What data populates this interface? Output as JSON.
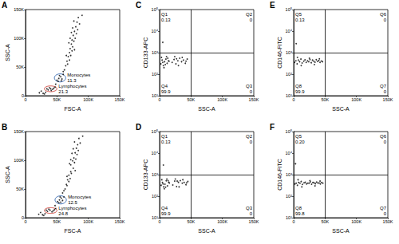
{
  "chart_data": [
    {
      "type": "scatter",
      "title": "A",
      "x_label": "FSC-A",
      "y_label": "SSC-A",
      "color": "#000000",
      "grid": false,
      "xlim": [
        0,
        150000
      ],
      "xticks": [
        0,
        {
          "value": 50000,
          "label": "50K"
        },
        {
          "value": 100000,
          "label": "100K"
        },
        {
          "value": 150000,
          "label": "150K"
        }
      ],
      "ylim": [
        0,
        150000
      ],
      "yticks": [
        0,
        {
          "value": 50000,
          "label": "50K"
        },
        {
          "value": 100000,
          "label": "100K"
        },
        {
          "value": 150000,
          "label": "150K"
        }
      ],
      "x": [
        62000,
        64000,
        66000,
        68000,
        70000,
        71000,
        73000,
        74000,
        76000,
        78000,
        80000,
        82000,
        84000,
        67000,
        72000,
        75000,
        69000,
        77000,
        79000,
        81000,
        73000,
        75000,
        86000,
        70000,
        65000,
        78000,
        83000,
        77000,
        71000,
        74000,
        50000,
        53000,
        56000,
        58000,
        54000,
        60000,
        52000,
        57000,
        36000,
        40000,
        43000,
        38000,
        45000,
        41000,
        34000,
        47000,
        28000,
        32000,
        25000,
        30000,
        22000,
        48000,
        60000,
        90000
      ],
      "values": [
        45000,
        52000,
        60000,
        68000,
        75000,
        82000,
        90000,
        97000,
        105000,
        112000,
        120000,
        128000,
        136000,
        55000,
        70000,
        85000,
        92000,
        95000,
        100000,
        108000,
        110000,
        118000,
        125000,
        62000,
        70000,
        80000,
        115000,
        130000,
        100000,
        78000,
        27000,
        30000,
        33000,
        29000,
        35000,
        37000,
        25000,
        26000,
        10000,
        12000,
        11000,
        14000,
        13000,
        9000,
        12000,
        15000,
        4000,
        6000,
        8000,
        3000,
        5000,
        20000,
        42000,
        140000
      ],
      "gates": [
        {
          "label": "Monocytes",
          "value": 11.3,
          "color": "#3b6db3",
          "center": [
            55000,
            31000
          ],
          "radii": [
            9000,
            7000
          ]
        },
        {
          "label": "Lymphocytes",
          "value": 21.3,
          "color": "#d0463c",
          "center": [
            40000,
            12000
          ],
          "radii": [
            10000,
            5000
          ]
        }
      ]
    },
    {
      "type": "scatter",
      "title": "B",
      "x_label": "FSC-A",
      "y_label": "SSC-A",
      "color": "#000000",
      "grid": false,
      "xlim": [
        0,
        150000
      ],
      "xticks": [
        0,
        {
          "value": 50000,
          "label": "50K"
        },
        {
          "value": 100000,
          "label": "100K"
        },
        {
          "value": 150000,
          "label": "150K"
        }
      ],
      "ylim": [
        0,
        150000
      ],
      "yticks": [
        0,
        {
          "value": 50000,
          "label": "50K"
        },
        {
          "value": 100000,
          "label": "100K"
        },
        {
          "value": 150000,
          "label": "150K"
        }
      ],
      "x": [
        61000,
        63000,
        65000,
        67000,
        69000,
        72000,
        72000,
        75000,
        77000,
        79000,
        81000,
        83000,
        85000,
        66000,
        71000,
        76000,
        70000,
        78000,
        80000,
        82000,
        74000,
        76000,
        87000,
        69000,
        66000,
        79000,
        84000,
        78000,
        72000,
        73000,
        51000,
        54000,
        57000,
        59000,
        55000,
        61000,
        53000,
        56000,
        35000,
        39000,
        44000,
        37000,
        46000,
        42000,
        33000,
        48000,
        27000,
        31000,
        24000,
        29000,
        21000,
        47000,
        59000,
        91000
      ],
      "values": [
        47000,
        50000,
        58000,
        66000,
        74000,
        80000,
        92000,
        99000,
        104000,
        113000,
        121000,
        127000,
        138000,
        56000,
        68000,
        86000,
        94000,
        96000,
        102000,
        110000,
        112000,
        120000,
        130000,
        63000,
        72000,
        82000,
        117000,
        132000,
        101000,
        77000,
        28000,
        31000,
        34000,
        30000,
        36000,
        36000,
        26000,
        27000,
        11000,
        13000,
        12000,
        15000,
        14000,
        10000,
        13000,
        16000,
        5000,
        7000,
        9000,
        4000,
        6000,
        21000,
        43000,
        142000
      ],
      "gates": [
        {
          "label": "Monocytes",
          "value": 12.5,
          "color": "#3b6db3",
          "center": [
            56000,
            31000
          ],
          "radii": [
            9000,
            7000
          ]
        },
        {
          "label": "Lymphocytes",
          "value": 24.8,
          "color": "#d0463c",
          "center": [
            40000,
            12500
          ],
          "radii": [
            10000,
            5000
          ]
        }
      ]
    },
    {
      "type": "scatter",
      "title": "C",
      "x_label": "SSC-A",
      "y_label": "CD133-APC",
      "color": "#000000",
      "grid": false,
      "log": "y",
      "xlim": [
        0,
        150000
      ],
      "xticks": [
        0,
        {
          "value": 50000,
          "label": "50K"
        },
        {
          "value": 100000,
          "label": "100K"
        },
        {
          "value": 150000,
          "label": "150K"
        }
      ],
      "ylim": [
        10,
        100000
      ],
      "yticks": [
        {
          "value": 10,
          "label": "10¹"
        },
        {
          "value": 100,
          "label": "10²"
        },
        {
          "value": 1000,
          "label": "10³"
        },
        {
          "value": 10000,
          "label": "10⁴"
        },
        {
          "value": 100000,
          "label": "10⁵"
        }
      ],
      "x": [
        2000,
        4000,
        6000,
        8000,
        10000,
        12000,
        14000,
        3000,
        7000,
        11000,
        5000,
        9000,
        13000,
        15000,
        20000,
        23000,
        26000,
        29000,
        32000,
        35000,
        38000,
        41000,
        44000,
        24000,
        30000,
        36000,
        42000,
        27000,
        5000
      ],
      "values": [
        300,
        450,
        250,
        380,
        500,
        320,
        420,
        600,
        200,
        650,
        350,
        280,
        550,
        400,
        350,
        480,
        300,
        420,
        550,
        380,
        450,
        320,
        500,
        650,
        250,
        600,
        400,
        520,
        3000
      ],
      "quadrants": {
        "x": 50000,
        "y": 1000,
        "labels": [
          {
            "name": "Q1",
            "value": 0.13
          },
          {
            "name": "Q2",
            "value": 0
          },
          {
            "name": "Q3",
            "value": 0
          },
          {
            "name": "Q4",
            "value": 99.9
          }
        ]
      }
    },
    {
      "type": "scatter",
      "title": "D",
      "x_label": "SSC-A",
      "y_label": "CD133-APC",
      "color": "#000000",
      "grid": false,
      "log": "y",
      "xlim": [
        0,
        150000
      ],
      "xticks": [
        0,
        {
          "value": 50000,
          "label": "50K"
        },
        {
          "value": 100000,
          "label": "100K"
        },
        {
          "value": 150000,
          "label": "150K"
        }
      ],
      "ylim": [
        10,
        100000
      ],
      "yticks": [
        {
          "value": 10,
          "label": "10¹"
        },
        {
          "value": 100,
          "label": "10²"
        },
        {
          "value": 1000,
          "label": "10³"
        },
        {
          "value": 10000,
          "label": "10⁴"
        },
        {
          "value": 100000,
          "label": "10⁵"
        }
      ],
      "x": [
        2500,
        4500,
        6500,
        8500,
        10500,
        12500,
        14500,
        3500,
        7500,
        11500,
        5500,
        9500,
        13500,
        15500,
        21000,
        24000,
        27000,
        30000,
        33000,
        36000,
        39000,
        42000,
        45000,
        25000,
        31000,
        37000,
        43000,
        28000,
        6000
      ],
      "values": [
        320,
        430,
        270,
        360,
        520,
        300,
        440,
        580,
        220,
        620,
        370,
        260,
        530,
        410,
        330,
        500,
        280,
        440,
        530,
        400,
        430,
        340,
        480,
        630,
        270,
        580,
        420,
        500,
        2800
      ],
      "quadrants": {
        "x": 50000,
        "y": 1000,
        "labels": [
          {
            "name": "Q1",
            "value": 0.13
          },
          {
            "name": "Q2",
            "value": 0
          },
          {
            "name": "Q3",
            "value": 0
          },
          {
            "name": "Q4",
            "value": 99.9
          }
        ]
      }
    },
    {
      "type": "scatter",
      "title": "E",
      "x_label": "SSC-A",
      "y_label": "CD146-FITC",
      "color": "#000000",
      "grid": false,
      "log": "y",
      "xlim": [
        0,
        150000
      ],
      "xticks": [
        0,
        {
          "value": 50000,
          "label": "50K"
        },
        {
          "value": 100000,
          "label": "100K"
        },
        {
          "value": 150000,
          "label": "150K"
        }
      ],
      "ylim": [
        10,
        100000
      ],
      "yticks": [
        {
          "value": 10,
          "label": "10¹"
        },
        {
          "value": 100,
          "label": "10²"
        },
        {
          "value": 1000,
          "label": "10³"
        },
        {
          "value": 10000,
          "label": "10⁴"
        },
        {
          "value": 100000,
          "label": "10⁵"
        }
      ],
      "x": [
        1500,
        3500,
        5500,
        7500,
        9500,
        11500,
        13500,
        16000,
        18000,
        20000,
        22000,
        24000,
        26000,
        28000,
        30000,
        32000,
        34000,
        36000,
        38000,
        40000,
        42000,
        44000,
        46000,
        6000,
        12000,
        25000,
        33000,
        41000,
        4000
      ],
      "values": [
        350,
        420,
        300,
        450,
        380,
        500,
        330,
        400,
        460,
        350,
        420,
        380,
        480,
        340,
        450,
        400,
        360,
        470,
        390,
        430,
        350,
        410,
        380,
        600,
        250,
        550,
        280,
        520,
        2600
      ],
      "quadrants": {
        "x": 50000,
        "y": 1000,
        "labels": [
          {
            "name": "Q5",
            "value": 0.13
          },
          {
            "name": "Q6",
            "value": 0
          },
          {
            "name": "Q7",
            "value": 0
          },
          {
            "name": "Q8",
            "value": 99.9
          }
        ]
      }
    },
    {
      "type": "scatter",
      "title": "F",
      "x_label": "SSC-A",
      "y_label": "CD146-FITC",
      "color": "#000000",
      "grid": false,
      "log": "y",
      "xlim": [
        0,
        150000
      ],
      "xticks": [
        0,
        {
          "value": 50000,
          "label": "50K"
        },
        {
          "value": 100000,
          "label": "100K"
        },
        {
          "value": 150000,
          "label": "150K"
        }
      ],
      "ylim": [
        10,
        100000
      ],
      "yticks": [
        {
          "value": 10,
          "label": "10¹"
        },
        {
          "value": 100,
          "label": "10²"
        },
        {
          "value": 1000,
          "label": "10³"
        },
        {
          "value": 10000,
          "label": "10⁴"
        },
        {
          "value": 100000,
          "label": "10⁵"
        }
      ],
      "x": [
        2000,
        4000,
        6000,
        8000,
        10000,
        12000,
        14000,
        16500,
        18500,
        20500,
        22500,
        24500,
        26500,
        28500,
        30500,
        32500,
        34500,
        36500,
        38500,
        40500,
        42500,
        44500,
        46500,
        7000,
        13000,
        26000,
        34000,
        42000,
        3000
      ],
      "values": [
        370,
        400,
        320,
        430,
        400,
        480,
        350,
        420,
        440,
        370,
        400,
        400,
        460,
        360,
        430,
        420,
        380,
        450,
        410,
        410,
        370,
        430,
        400,
        580,
        270,
        530,
        300,
        500,
        3200
      ],
      "quadrants": {
        "x": 50000,
        "y": 1000,
        "labels": [
          {
            "name": "Q5",
            "value": 0.2,
            "label": "0.20"
          },
          {
            "name": "Q6",
            "value": 0
          },
          {
            "name": "Q7",
            "value": 0
          },
          {
            "name": "Q8",
            "value": 99.8
          }
        ]
      }
    }
  ]
}
